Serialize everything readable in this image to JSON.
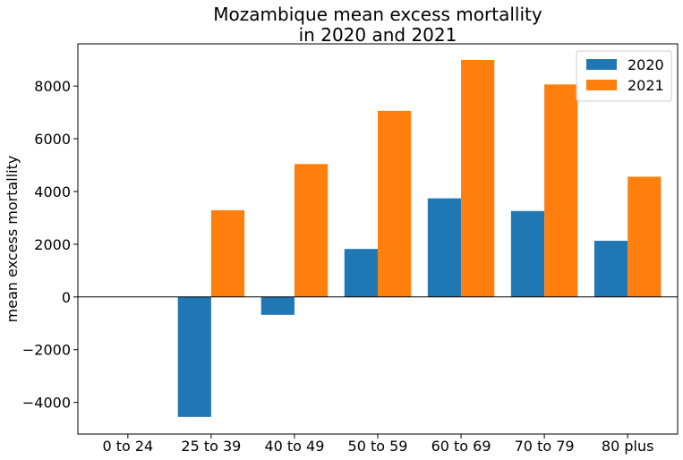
{
  "chart_data": {
    "type": "bar",
    "title_lines": [
      "Mozambique mean excess mortallity",
      "in 2020 and 2021"
    ],
    "xlabel": "",
    "ylabel": "mean excess mortallity",
    "categories": [
      "0 to 24",
      "25 to 39",
      "40 to 49",
      "50 to 59",
      "60 to 69",
      "70 to 79",
      "80 plus"
    ],
    "series": [
      {
        "name": "2020",
        "color": "#1f77b4",
        "values": [
          0,
          -4550,
          -680,
          1820,
          3740,
          3260,
          2130
        ]
      },
      {
        "name": "2021",
        "color": "#ff7f0e",
        "values": [
          0,
          3290,
          5040,
          7060,
          8990,
          8060,
          4560
        ]
      }
    ],
    "ylim": [
      -5200,
      9600
    ],
    "yticks": [
      -4000,
      -2000,
      0,
      2000,
      4000,
      6000,
      8000
    ],
    "ytick_labels": [
      "−4000",
      "−2000",
      "0",
      "2000",
      "4000",
      "6000",
      "8000"
    ],
    "zero_line": true,
    "grid": false,
    "legend_position": "top-right"
  }
}
